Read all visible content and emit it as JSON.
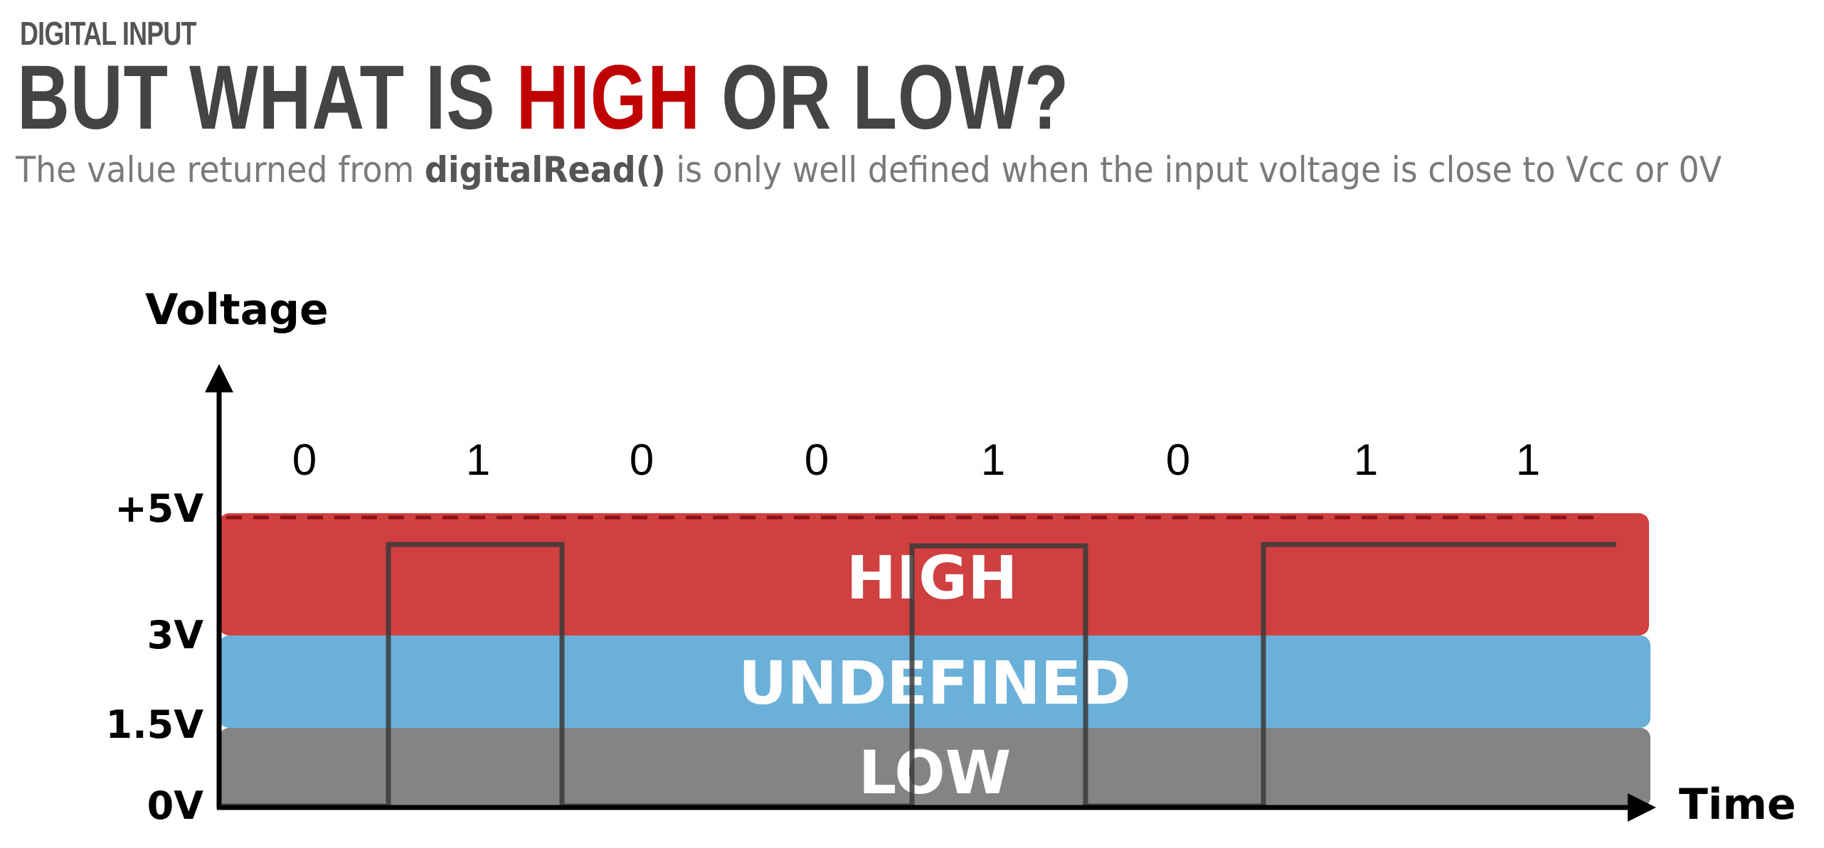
{
  "header": {
    "eyebrow": "DIGITAL INPUT",
    "title_pre": "BUT WHAT IS ",
    "title_accent": "HIGH",
    "title_post": " OR LOW?",
    "subtitle_pre": "The value returned from ",
    "subtitle_code": "digitalRead()",
    "subtitle_post": " is only well defined when the input voltage is close to Vcc or 0V"
  },
  "diagram": {
    "y_axis_label": "Voltage",
    "x_axis_label": "Time",
    "voltage_labels": [
      "+5V",
      "3V",
      "1.5V",
      "0V"
    ],
    "bits": [
      "0",
      "1",
      "0",
      "0",
      "1",
      "0",
      "1",
      "1"
    ],
    "zones": [
      {
        "label": "HIGH",
        "color": "#d04040"
      },
      {
        "label": "UNDEFINED",
        "color": "#6ab0d8"
      },
      {
        "label": "LOW",
        "color": "#848484"
      }
    ],
    "signal_color": "#3a3a3a"
  }
}
